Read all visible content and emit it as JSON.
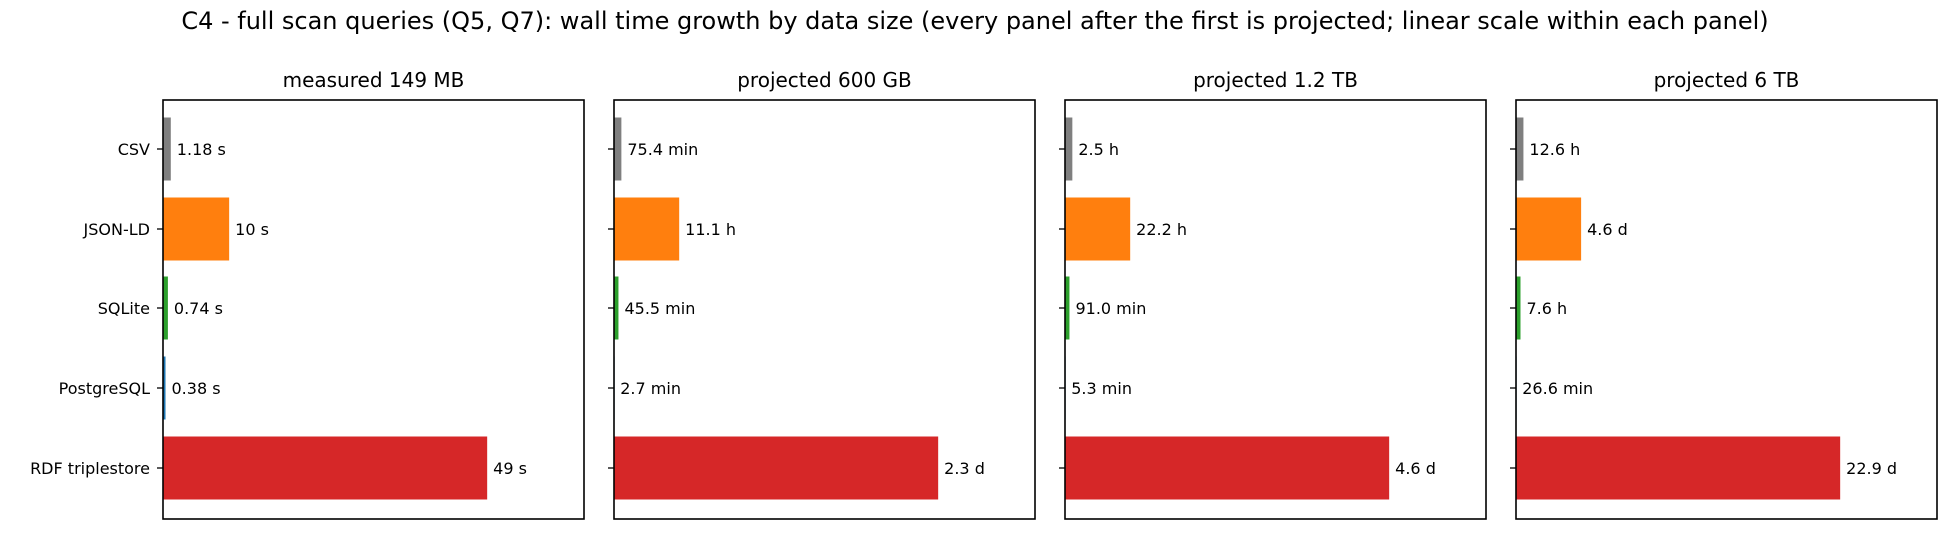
{
  "figure": {
    "title": "C4 - full scan queries (Q5, Q7): wall time growth by data size (every panel after the first is projected; linear scale within each panel)"
  },
  "chart_data": [
    {
      "type": "bar",
      "orientation": "horizontal",
      "title": "measured 149 MB",
      "categories": [
        "CSV",
        "JSON-LD",
        "SQLite",
        "PostgreSQL",
        "RDF triplestore"
      ],
      "values_seconds": [
        1.18,
        10,
        0.74,
        0.38,
        49
      ],
      "labels": [
        "1.18 s",
        "10 s",
        "0.74 s",
        "0.38 s",
        "49 s"
      ],
      "colors": [
        "#7f7f7f",
        "#ff7f0e",
        "#2ca02c",
        "#1f77b4",
        "#d62728"
      ]
    },
    {
      "type": "bar",
      "orientation": "horizontal",
      "title": "projected 600 GB",
      "categories": [
        "CSV",
        "JSON-LD",
        "SQLite",
        "PostgreSQL",
        "RDF triplestore"
      ],
      "values_seconds": [
        4524,
        39960,
        2730,
        162,
        198720
      ],
      "labels": [
        "75.4 min",
        "11.1 h",
        "45.5 min",
        "2.7 min",
        "2.3 d"
      ],
      "colors": [
        "#7f7f7f",
        "#ff7f0e",
        "#2ca02c",
        "#1f77b4",
        "#d62728"
      ]
    },
    {
      "type": "bar",
      "orientation": "horizontal",
      "title": "projected 1.2 TB",
      "categories": [
        "CSV",
        "JSON-LD",
        "SQLite",
        "PostgreSQL",
        "RDF triplestore"
      ],
      "values_seconds": [
        9000,
        79920,
        5460,
        318,
        397440
      ],
      "labels": [
        "2.5 h",
        "22.2 h",
        "91.0 min",
        "5.3 min",
        "4.6 d"
      ],
      "colors": [
        "#7f7f7f",
        "#ff7f0e",
        "#2ca02c",
        "#1f77b4",
        "#d62728"
      ]
    },
    {
      "type": "bar",
      "orientation": "horizontal",
      "title": "projected 6 TB",
      "categories": [
        "CSV",
        "JSON-LD",
        "SQLite",
        "PostgreSQL",
        "RDF triplestore"
      ],
      "values_seconds": [
        45360,
        397440,
        27360,
        1596,
        1978560
      ],
      "labels": [
        "12.6 h",
        "4.6 d",
        "7.6 h",
        "26.6 min",
        "22.9 d"
      ],
      "colors": [
        "#7f7f7f",
        "#ff7f0e",
        "#2ca02c",
        "#1f77b4",
        "#d62728"
      ]
    }
  ]
}
